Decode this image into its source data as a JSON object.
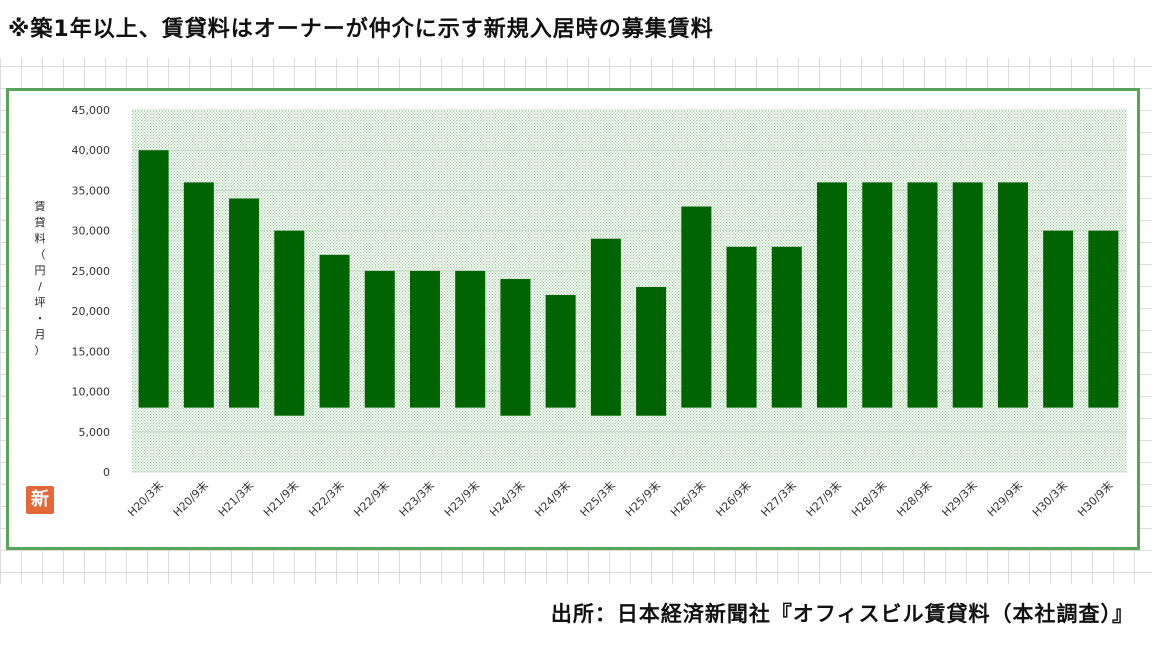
{
  "note": "※築1年以上、賃貸料はオーナーが仲介に示す新規入居時の募集賃料",
  "source": "出所：日本経済新聞社『オフィスビル賃貸料（本社調査）』",
  "logo_text": "新",
  "colors": {
    "bar": "#006400",
    "frame": "#5aa35a",
    "plot_dots": "#9ec89e"
  },
  "chart_data": {
    "type": "bar",
    "ylabel": "賃貸料（円/坪・月）",
    "ylim": [
      0,
      45000
    ],
    "yticks": [
      "0",
      "5,000",
      "10,000",
      "15,000",
      "20,000",
      "25,000",
      "30,000",
      "35,000",
      "40,000",
      "45,000"
    ],
    "categories": [
      "H20/3末",
      "H20/9末",
      "H21/3末",
      "H21/9末",
      "H22/3末",
      "H22/9末",
      "H23/3末",
      "H23/9末",
      "H24/3末",
      "H24/9末",
      "H25/3末",
      "H25/9末",
      "H26/3末",
      "H26/9末",
      "H27/3末",
      "H27/9末",
      "H28/3末",
      "H28/9末",
      "H29/3末",
      "H29/9末",
      "H30/3末",
      "H30/9末"
    ],
    "low": [
      8000,
      8000,
      8000,
      7000,
      8000,
      8000,
      8000,
      8000,
      7000,
      8000,
      7000,
      7000,
      8000,
      8000,
      8000,
      8000,
      8000,
      8000,
      8000,
      8000,
      8000,
      8000
    ],
    "high": [
      40000,
      36000,
      34000,
      30000,
      27000,
      25000,
      25000,
      25000,
      24000,
      22000,
      29000,
      23000,
      33000,
      28000,
      28000,
      36000,
      36000,
      36000,
      36000,
      36000,
      30000,
      30000
    ]
  }
}
